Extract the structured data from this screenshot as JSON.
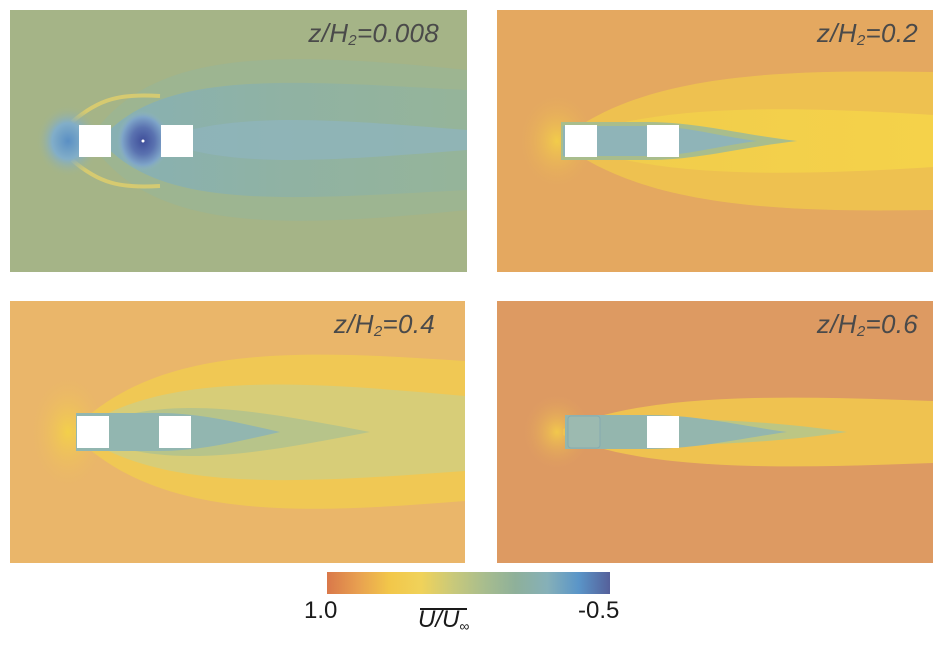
{
  "panels": [
    {
      "prefix": "z/H",
      "sub": "2",
      "value": "=0.008"
    },
    {
      "prefix": "z/H",
      "sub": "2",
      "value": "=0.2"
    },
    {
      "prefix": "z/H",
      "sub": "2",
      "value": "=0.4"
    },
    {
      "prefix": "z/H",
      "sub": "2",
      "value": "=0.6"
    }
  ],
  "colorbar": {
    "min_label": "1.0",
    "max_label": "-0.5",
    "quantity_main": "U/U",
    "quantity_sub": "∞",
    "colors": [
      "#d9784a",
      "#e8a050",
      "#f2c74a",
      "#f0d25a",
      "#c9c97a",
      "#a8bd8e",
      "#8eb09a",
      "#86b0b8",
      "#5a95c8",
      "#55609a"
    ]
  },
  "field_colors": {
    "panel1_background": "#a5b487",
    "panel2_background": "#e4a860",
    "panel3_background": "#eab66a",
    "panel4_background": "#dd9a62",
    "wake_blue": "#8eb4c0",
    "wake_green": "#93b59a",
    "wake_yellow": "#f3cf4c",
    "deep_blue": "#5a6aa6"
  }
}
